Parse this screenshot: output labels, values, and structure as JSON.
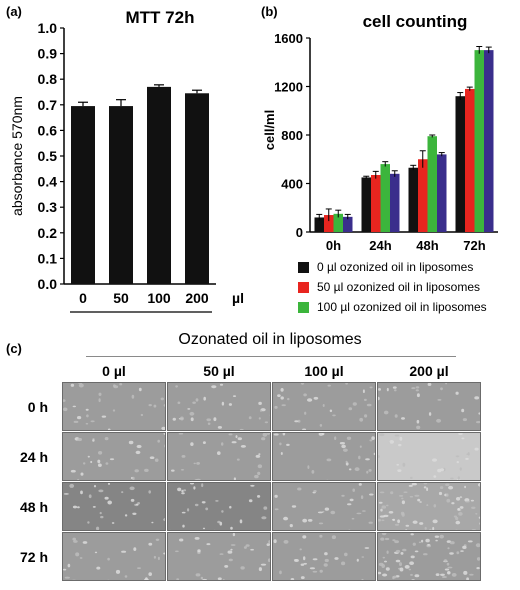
{
  "panel_a": {
    "label": "(a)",
    "title": "MTT 72h",
    "ylabel": "absorbance 570nm",
    "yticks": [
      "0.0",
      "0.1",
      "0.2",
      "0.3",
      "0.4",
      "0.5",
      "0.6",
      "0.7",
      "0.8",
      "0.9",
      "1.0"
    ],
    "unit": "µl"
  },
  "panel_b": {
    "label": "(b)",
    "title": "cell counting",
    "ylabel": "cell/ml",
    "yticks": [
      "0",
      "400",
      "800",
      "1200",
      "1600"
    ],
    "legend": [
      {
        "label": "0 µl ozonized oil in liposomes",
        "color": "#111111"
      },
      {
        "label": "50 µl ozonized oil in liposomes",
        "color": "#e8251f"
      },
      {
        "label": "100 µl ozonized oil in liposomes",
        "color": "#3cb53c"
      }
    ]
  },
  "panel_c": {
    "label": "(c)",
    "title": "Ozonated oil in liposomes",
    "columns": [
      "0 µl",
      "50 µl",
      "100 µl",
      "200 µl"
    ],
    "rows": [
      "0 h",
      "24 h",
      "48 h",
      "72 h"
    ]
  },
  "chart_data": [
    {
      "type": "bar",
      "title": "MTT 72h",
      "xlabel": "µl",
      "ylabel": "absorbance 570nm",
      "categories": [
        "0",
        "50",
        "100",
        "200"
      ],
      "values": [
        0.695,
        0.695,
        0.77,
        0.745
      ],
      "errors": [
        0.015,
        0.025,
        0.008,
        0.012
      ],
      "ylim": [
        0,
        1.0
      ],
      "color": "#111111"
    },
    {
      "type": "bar",
      "title": "cell counting",
      "ylabel": "cell/ml",
      "categories": [
        "0h",
        "24h",
        "48h",
        "72h"
      ],
      "series": [
        {
          "name": "0 µl ozonized oil in liposomes",
          "color": "#111111",
          "values": [
            120,
            450,
            530,
            1120
          ],
          "errors": [
            25,
            10,
            20,
            30
          ]
        },
        {
          "name": "50 µl ozonized oil in liposomes",
          "color": "#e8251f",
          "values": [
            140,
            470,
            600,
            1180
          ],
          "errors": [
            50,
            30,
            70,
            15
          ]
        },
        {
          "name": "100 µl ozonized oil in liposomes",
          "color": "#3cb53c",
          "values": [
            150,
            560,
            790,
            1500
          ],
          "errors": [
            30,
            20,
            10,
            30
          ]
        },
        {
          "color": "#3a2e8c",
          "values": [
            125,
            480,
            640,
            1500
          ],
          "errors": [
            20,
            25,
            15,
            25
          ]
        }
      ],
      "ylim": [
        0,
        1600
      ]
    }
  ]
}
